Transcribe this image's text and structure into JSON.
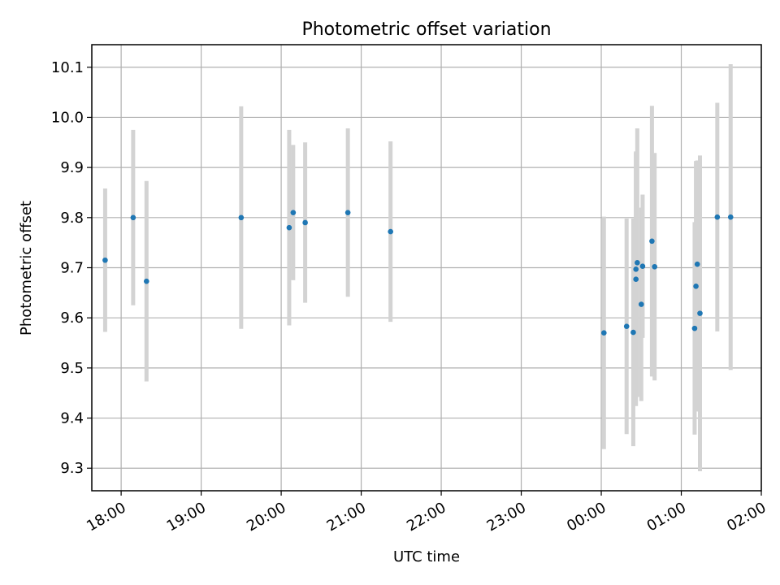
{
  "chart_data": {
    "type": "scatter",
    "title": "Photometric offset variation",
    "xlabel": "UTC time",
    "ylabel": "Photometric offset",
    "x_axis_type": "time",
    "xlim": [
      "17:38",
      "02:00"
    ],
    "ylim": [
      9.255,
      10.145
    ],
    "x_ticks": [
      "18:00",
      "19:00",
      "20:00",
      "21:00",
      "22:00",
      "23:00",
      "00:00",
      "01:00",
      "02:00"
    ],
    "y_ticks": [
      9.3,
      9.4,
      9.5,
      9.6,
      9.7,
      9.8,
      9.9,
      10.0,
      10.1
    ],
    "y_tick_labels": [
      "9.3",
      "9.4",
      "9.5",
      "9.6",
      "9.7",
      "9.8",
      "9.9",
      "10.0",
      "10.1"
    ],
    "grid": true,
    "colors": {
      "point": "#1f77b4",
      "errorbar": "#d3d3d3"
    },
    "points": [
      {
        "time": "17:48",
        "y": 9.715,
        "err": 0.143
      },
      {
        "time": "18:09",
        "y": 9.8,
        "err": 0.175
      },
      {
        "time": "18:19",
        "y": 9.673,
        "err": 0.2
      },
      {
        "time": "19:30",
        "y": 9.8,
        "err": 0.222
      },
      {
        "time": "20:06",
        "y": 9.78,
        "err": 0.195
      },
      {
        "time": "20:09",
        "y": 9.81,
        "err": 0.135
      },
      {
        "time": "20:18",
        "y": 9.79,
        "err": 0.16
      },
      {
        "time": "20:50",
        "y": 9.81,
        "err": 0.168
      },
      {
        "time": "21:22",
        "y": 9.772,
        "err": 0.18
      },
      {
        "time": "00:02",
        "y": 9.57,
        "err": 0.232
      },
      {
        "time": "00:19",
        "y": 9.583,
        "err": 0.215
      },
      {
        "time": "00:24",
        "y": 9.571,
        "err": 0.227
      },
      {
        "time": "00:26",
        "y": 9.677,
        "err": 0.253
      },
      {
        "time": "00:26",
        "y": 9.697,
        "err": 0.235
      },
      {
        "time": "00:27",
        "y": 9.71,
        "err": 0.268
      },
      {
        "time": "00:30",
        "y": 9.627,
        "err": 0.193
      },
      {
        "time": "00:31",
        "y": 9.703,
        "err": 0.143
      },
      {
        "time": "00:38",
        "y": 9.753,
        "err": 0.27
      },
      {
        "time": "00:40",
        "y": 9.702,
        "err": 0.227
      },
      {
        "time": "01:10",
        "y": 9.579,
        "err": 0.212
      },
      {
        "time": "01:11",
        "y": 9.663,
        "err": 0.25
      },
      {
        "time": "01:12",
        "y": 9.707,
        "err": 0.207
      },
      {
        "time": "01:14",
        "y": 9.609,
        "err": 0.315
      },
      {
        "time": "01:27",
        "y": 9.801,
        "err": 0.228
      },
      {
        "time": "01:37",
        "y": 9.801,
        "err": 0.305
      }
    ]
  }
}
